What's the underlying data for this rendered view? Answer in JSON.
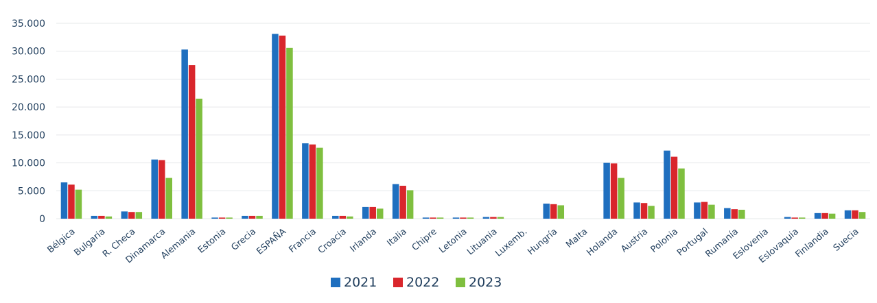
{
  "chart_data": {
    "type": "bar",
    "title": "",
    "xlabel": "",
    "ylabel": "",
    "ylim": [
      0,
      35000
    ],
    "yticks": [
      0,
      5000,
      10000,
      15000,
      20000,
      25000,
      30000,
      35000
    ],
    "ytick_labels": [
      "0",
      "5.000",
      "10.000",
      "15.000",
      "20.000",
      "25.000",
      "30.000",
      "35.000"
    ],
    "grid": true,
    "legend_position": "bottom",
    "categories": [
      "Bélgica",
      "Bulgaria",
      "R. Checa",
      "Dinamarca",
      "Alemania",
      "Estonia",
      "Grecia",
      "ESPAÑA",
      "Francia",
      "Croacia",
      "Irlanda",
      "Italia",
      "Chipre",
      "Letonia",
      "Lituania",
      "Luxemb.",
      "Hungría",
      "Malta",
      "Holanda",
      "Austria",
      "Polonia",
      "Portugal",
      "Rumanía",
      "Eslovenia",
      "Eslovaquia",
      "Finlandia",
      "Suecia"
    ],
    "series": [
      {
        "name": "2021",
        "color": "#1f6fbf",
        "values": [
          6500,
          500,
          1300,
          10600,
          30300,
          200,
          500,
          33100,
          13500,
          500,
          2100,
          6200,
          200,
          200,
          300,
          0,
          2700,
          0,
          10000,
          2900,
          12200,
          2900,
          1900,
          0,
          300,
          1000,
          1500
        ]
      },
      {
        "name": "2022",
        "color": "#d9262c",
        "values": [
          6100,
          500,
          1200,
          10500,
          27500,
          200,
          500,
          32800,
          13300,
          500,
          2100,
          5900,
          200,
          200,
          300,
          0,
          2600,
          0,
          9900,
          2800,
          11100,
          3000,
          1700,
          0,
          200,
          1000,
          1500
        ]
      },
      {
        "name": "2023",
        "color": "#7fbf3f",
        "values": [
          5200,
          400,
          1200,
          7300,
          21500,
          200,
          500,
          30600,
          12700,
          400,
          1800,
          5100,
          200,
          200,
          300,
          0,
          2400,
          0,
          7300,
          2300,
          9000,
          2500,
          1600,
          0,
          200,
          900,
          1200
        ]
      }
    ]
  }
}
